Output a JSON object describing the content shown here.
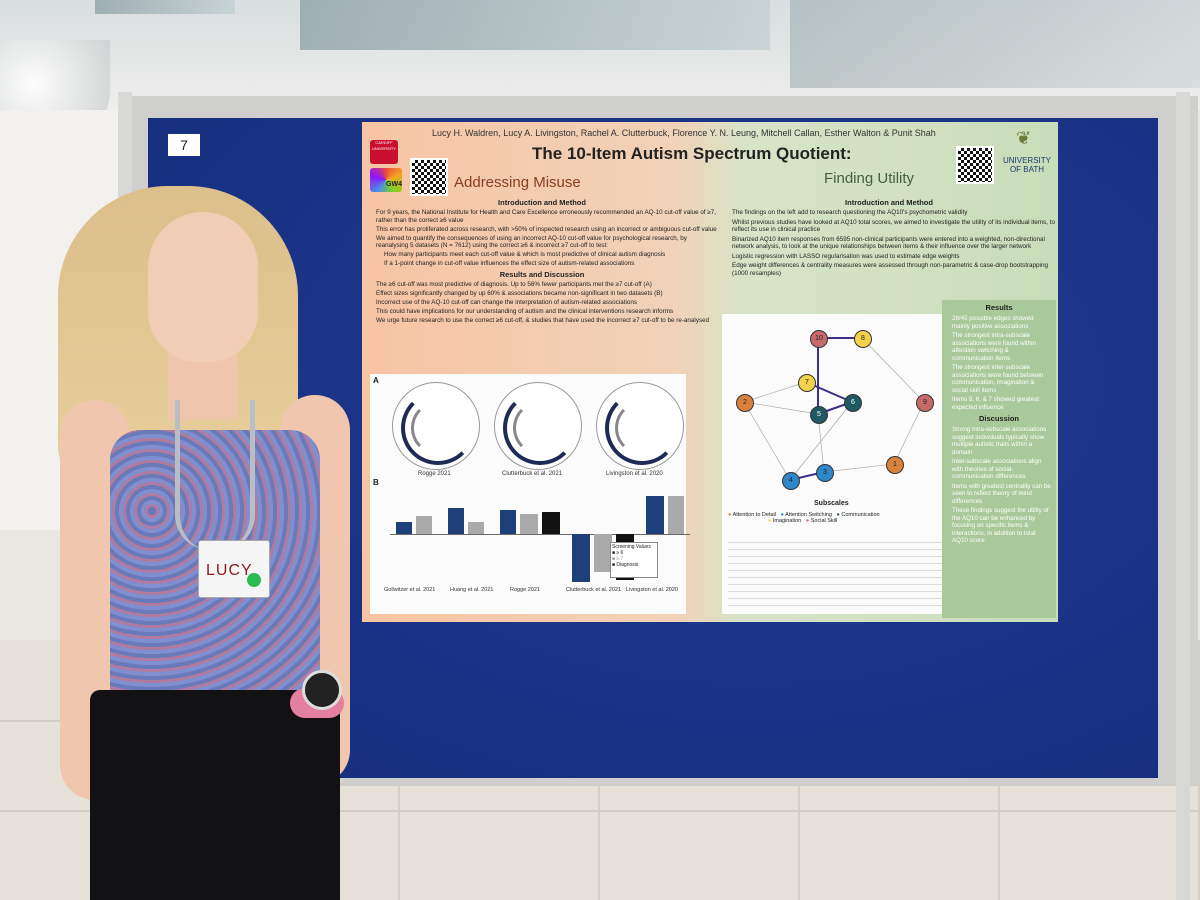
{
  "board": {
    "number": "7"
  },
  "poster": {
    "authors": "Lucy H. Waldren, Lucy A. Livingston, Rachel A. Clutterbuck, Florence Y. N. Leung, Mitchell Callan, Esther Walton & Punit Shah",
    "title": "The 10-Item Autism Spectrum Quotient:",
    "subtitle_left": "Addressing Misuse",
    "subtitle_right": "Finding Utility",
    "logo_left": "CARDIFF UNIVERSITY",
    "logo_gw": "GW4",
    "logo_right": "UNIVERSITY OF BATH",
    "left": {
      "heading1": "Introduction and Method",
      "intro": [
        "For 9 years, the National Institute for Health and Care Excellence erroneously recommended an AQ-10 cut-off value of ≥7, rather than the correct ≥6 value",
        "This error has proliferated across research, with >50% of inspected research using an incorrect or ambiguous cut-off value",
        "We aimed to quantify the consequences of using an incorrect AQ-10 cut-off value for psychological research, by reanalysing 5 datasets (N = 7612) using the correct ≥6 & incorrect ≥7 cut-off to test:",
        "How many participants meet each cut-off value & which is most predictive of clinical autism diagnosis",
        "If a 1-point change in cut-off value influences the effect size of autism-related associations"
      ],
      "heading2": "Results and Discussion",
      "results": [
        "The ≥6 cut-off was most predictive of diagnosis. Up to 56% fewer participants met the ≥7 cut-off (A)",
        "Effect sizes significantly changed by up 60% & associations became non-significant in two datasets (B)",
        "Incorrect use of the AQ-10 cut-off can change the interpretation of autism-related associations",
        "This could have implications for our understanding of autism and the clinical interventions research informs",
        "We urge future research to use the correct ≥6 cut-off, & studies that have used the incorrect ≥7 cut-off to be re-analysed"
      ]
    },
    "right": {
      "heading1": "Introduction and Method",
      "intro": [
        "The findings on the left add to research questioning the AQ10's psychometric validity",
        "Whilst previous studies have looked at AQ10 total scores, we aimed to investigate the utility of its individual items, to reflect its use in clinical practice",
        "Binarized AQ10 item responses from 6595 non-clinical participants were entered into a weighted, non-directional network analysis, to look at the unique relationships between items & their influence over the larger network",
        "Logistic regression with LASSO regularisation was used to estimate edge weights",
        "Edge weight differences & centrality measures were assessed through non-parametric & case-drop bootstrapping (1000 resamples)"
      ],
      "results_heading": "Results",
      "results": [
        "28/45 possible edges showed mainly positive associations",
        "The strongest intra-subscale associations were found within attention switching & communication items",
        "The strongest inter-subscale associations were found between communication, imagination & social skill items",
        "Items 5, 6, & 7 showed greatest expected influence"
      ],
      "discussion_heading": "Discussion",
      "discussion": [
        "Strong intra-subscale associations suggest individuals typically show multiple autistic traits within a domain",
        "Inter-subscale associations align with theories of social-communication differences",
        "Items with greatest centrality can be seen to reflect theory of mind differences",
        "These findings suggest the utility of the AQ10 can be enhanced by focusing on specific items & interactions, in addition to total AQ10 score"
      ]
    },
    "figure": {
      "panel_a": "A",
      "panel_b": "B",
      "studies_a": [
        "Rogge 2021",
        "Clutterbuck et al. 2021",
        "Livingston et al. 2020"
      ],
      "studies_b": [
        "Gollwitzer et al. 2021",
        "Huang et al. 2021",
        "Rogge 2021",
        "Clutterbuck et al. 2021",
        "Livingston et al. 2020"
      ],
      "legend_title": "Screening Values",
      "legend": [
        "≥ 6",
        "≥ 7",
        "Diagnosis"
      ],
      "network_legend_title": "Subscales",
      "subscales": [
        {
          "name": "Attention to Detail",
          "color": "#d9823b"
        },
        {
          "name": "Attention Switching",
          "color": "#2f86c9"
        },
        {
          "name": "Communication",
          "color": "#1f5a63"
        },
        {
          "name": "Imagination",
          "color": "#f1d24a"
        },
        {
          "name": "Social Skill",
          "color": "#c96a6a"
        }
      ],
      "nodes": [
        {
          "label": "10",
          "color": "#c96a6a"
        },
        {
          "label": "8",
          "color": "#f1d24a"
        },
        {
          "label": "7",
          "color": "#f1d24a"
        },
        {
          "label": "2",
          "color": "#d9823b"
        },
        {
          "label": "9",
          "color": "#c96a6a"
        },
        {
          "label": "5",
          "color": "#1f5a63"
        },
        {
          "label": "6",
          "color": "#1f5a63"
        },
        {
          "label": "1",
          "color": "#d9823b"
        },
        {
          "label": "3",
          "color": "#2f86c9"
        },
        {
          "label": "4",
          "color": "#2f86c9"
        }
      ]
    }
  },
  "person": {
    "badge_name": "LUCY"
  }
}
